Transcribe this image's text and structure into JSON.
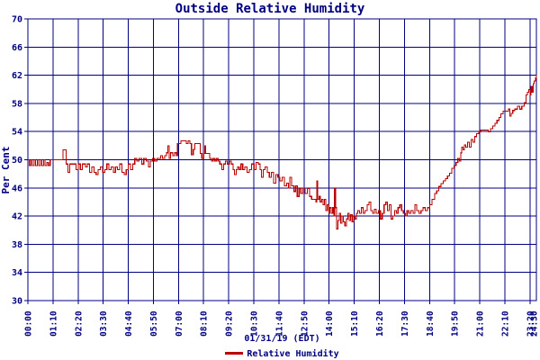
{
  "title": "Outside Relative Humidity",
  "footer": {
    "date_label": "01/31/19 (EDT)"
  },
  "legend": {
    "label": "Relative Humidity",
    "swatch_color": "#bb0000"
  },
  "colors": {
    "grid": "#000080",
    "text": "#000080",
    "series": "#bb0000",
    "background": "#ffffff"
  },
  "chart_data": {
    "type": "line",
    "title": "Outside Relative Humidity",
    "xlabel": "",
    "ylabel": "Per Cent",
    "ylim": [
      30,
      70
    ],
    "y_ticks": [
      70,
      66,
      62,
      58,
      54,
      50,
      46,
      42,
      38,
      34,
      30
    ],
    "x_range_minutes": [
      0,
      1418
    ],
    "x_ticks_minutes": [
      0,
      70,
      140,
      210,
      280,
      350,
      420,
      490,
      560,
      630,
      700,
      770,
      840,
      910,
      980,
      1050,
      1120,
      1190,
      1260,
      1330,
      1400
    ],
    "x_tick_labels": [
      "00:00",
      "01:10",
      "02:20",
      "03:30",
      "04:40",
      "05:50",
      "07:00",
      "08:10",
      "09:20",
      "10:30",
      "11:40",
      "12:50",
      "14:00",
      "15:10",
      "16:20",
      "17:30",
      "18:40",
      "19:50",
      "21:00",
      "22:10",
      "23:20"
    ],
    "x_overlap_label": "24:30",
    "grid": true,
    "legend_position": "bottom-center",
    "series": [
      {
        "name": "Relative Humidity",
        "color": "#bb0000",
        "points": [
          [
            0,
            50
          ],
          [
            4,
            49.2
          ],
          [
            8,
            50
          ],
          [
            12,
            49.2
          ],
          [
            17,
            50
          ],
          [
            21,
            49.2
          ],
          [
            26,
            50
          ],
          [
            30,
            49.2
          ],
          [
            35,
            50
          ],
          [
            39,
            49.2
          ],
          [
            44,
            50
          ],
          [
            48,
            49.2
          ],
          [
            53,
            49.6
          ],
          [
            57,
            49.2
          ],
          [
            62,
            50
          ],
          [
            94,
            50
          ],
          [
            98,
            51.4
          ],
          [
            104,
            51.4
          ],
          [
            107,
            49.4
          ],
          [
            112,
            48.2
          ],
          [
            117,
            49.4
          ],
          [
            130,
            49.4
          ],
          [
            134,
            48.6
          ],
          [
            140,
            49.4
          ],
          [
            146,
            48.6
          ],
          [
            152,
            49.4
          ],
          [
            160,
            49
          ],
          [
            166,
            49.4
          ],
          [
            172,
            48.2
          ],
          [
            178,
            49
          ],
          [
            184,
            48.2
          ],
          [
            190,
            47.9
          ],
          [
            196,
            48.6
          ],
          [
            202,
            49
          ],
          [
            208,
            48.2
          ],
          [
            214,
            48.6
          ],
          [
            220,
            49.4
          ],
          [
            226,
            48.6
          ],
          [
            232,
            49
          ],
          [
            238,
            48.2
          ],
          [
            244,
            49
          ],
          [
            250,
            48.6
          ],
          [
            256,
            49.4
          ],
          [
            262,
            48.2
          ],
          [
            268,
            47.9
          ],
          [
            274,
            48.6
          ],
          [
            280,
            49.4
          ],
          [
            286,
            48.6
          ],
          [
            292,
            49.4
          ],
          [
            298,
            50.2
          ],
          [
            304,
            49.8
          ],
          [
            310,
            50.2
          ],
          [
            317,
            49.4
          ],
          [
            323,
            50.2
          ],
          [
            330,
            49.8
          ],
          [
            336,
            49
          ],
          [
            341,
            49.8
          ],
          [
            347,
            50.2
          ],
          [
            353,
            49.8
          ],
          [
            360,
            50.2
          ],
          [
            370,
            50.6
          ],
          [
            375,
            50.2
          ],
          [
            381,
            50.6
          ],
          [
            386,
            51
          ],
          [
            390,
            52
          ],
          [
            394,
            50.2
          ],
          [
            398,
            51
          ],
          [
            404,
            50.6
          ],
          [
            409,
            51
          ],
          [
            414,
            50.6
          ],
          [
            417,
            52.3
          ],
          [
            422,
            52.3
          ],
          [
            427,
            52.7
          ],
          [
            436,
            52.7
          ],
          [
            442,
            52.3
          ],
          [
            447,
            52.7
          ],
          [
            452,
            52.3
          ],
          [
            456,
            50.7
          ],
          [
            461,
            51.5
          ],
          [
            465,
            52.3
          ],
          [
            475,
            52.3
          ],
          [
            480,
            50.9
          ],
          [
            485,
            50.2
          ],
          [
            490,
            50.9
          ],
          [
            493,
            52
          ],
          [
            496,
            50.9
          ],
          [
            502,
            50.9
          ],
          [
            507,
            50.2
          ],
          [
            512,
            49.8
          ],
          [
            516,
            50.2
          ],
          [
            520,
            49.8
          ],
          [
            525,
            50.2
          ],
          [
            530,
            49.8
          ],
          [
            535,
            49.4
          ],
          [
            541,
            48.6
          ],
          [
            546,
            49.4
          ],
          [
            551,
            49.8
          ],
          [
            556,
            49.4
          ],
          [
            562,
            49.8
          ],
          [
            567,
            49.4
          ],
          [
            572,
            48.6
          ],
          [
            576,
            47.9
          ],
          [
            581,
            48.6
          ],
          [
            585,
            49
          ],
          [
            589,
            48.6
          ],
          [
            594,
            49.4
          ],
          [
            599,
            48.6
          ],
          [
            605,
            49
          ],
          [
            611,
            48.2
          ],
          [
            617,
            48.6
          ],
          [
            624,
            49.4
          ],
          [
            631,
            48.6
          ],
          [
            636,
            49.6
          ],
          [
            642,
            49.4
          ],
          [
            647,
            48.6
          ],
          [
            651,
            47.5
          ],
          [
            656,
            48.6
          ],
          [
            661,
            49
          ],
          [
            667,
            48.2
          ],
          [
            673,
            47.5
          ],
          [
            679,
            48.2
          ],
          [
            685,
            46.7
          ],
          [
            691,
            47.9
          ],
          [
            697,
            47.5
          ],
          [
            702,
            47
          ],
          [
            709,
            47.5
          ],
          [
            715,
            46.3
          ],
          [
            721,
            46.7
          ],
          [
            726,
            46
          ],
          [
            730,
            47.5
          ],
          [
            735,
            46.3
          ],
          [
            741,
            45.5
          ],
          [
            746,
            46.3
          ],
          [
            751,
            44.8
          ],
          [
            756,
            45.9
          ],
          [
            761,
            45.2
          ],
          [
            767,
            46
          ],
          [
            773,
            45.2
          ],
          [
            779,
            45.9
          ],
          [
            785,
            44.8
          ],
          [
            791,
            44.4
          ],
          [
            798,
            44.4
          ],
          [
            803,
            44
          ],
          [
            805,
            47
          ],
          [
            808,
            44.4
          ],
          [
            812,
            44.8
          ],
          [
            815,
            44
          ],
          [
            819,
            44.4
          ],
          [
            823,
            43.6
          ],
          [
            827,
            44.4
          ],
          [
            831,
            42.8
          ],
          [
            835,
            43.6
          ],
          [
            839,
            42.4
          ],
          [
            842,
            43.2
          ],
          [
            846,
            42.4
          ],
          [
            850,
            43.2
          ],
          [
            853,
            42
          ],
          [
            855,
            45.9
          ],
          [
            858,
            43.2
          ],
          [
            861,
            40.2
          ],
          [
            864,
            41.4
          ],
          [
            868,
            42.4
          ],
          [
            872,
            41
          ],
          [
            876,
            42
          ],
          [
            880,
            41.2
          ],
          [
            884,
            40.6
          ],
          [
            888,
            41.6
          ],
          [
            892,
            42.4
          ],
          [
            896,
            41.4
          ],
          [
            900,
            42.2
          ],
          [
            904,
            41.2
          ],
          [
            908,
            42
          ],
          [
            912,
            41.6
          ],
          [
            916,
            42.4
          ],
          [
            920,
            42.8
          ],
          [
            925,
            42.4
          ],
          [
            930,
            43.2
          ],
          [
            935,
            42.4
          ],
          [
            940,
            42.8
          ],
          [
            946,
            43.6
          ],
          [
            951,
            44
          ],
          [
            956,
            42.8
          ],
          [
            961,
            42.4
          ],
          [
            966,
            43
          ],
          [
            971,
            42.4
          ],
          [
            977,
            42.8
          ],
          [
            983,
            41.6
          ],
          [
            988,
            42.4
          ],
          [
            993,
            43.6
          ],
          [
            998,
            44
          ],
          [
            1003,
            42.8
          ],
          [
            1008,
            43.6
          ],
          [
            1013,
            41.6
          ],
          [
            1018,
            42
          ],
          [
            1023,
            42.8
          ],
          [
            1028,
            42.4
          ],
          [
            1032,
            43.2
          ],
          [
            1037,
            43.6
          ],
          [
            1042,
            42.8
          ],
          [
            1047,
            42.4
          ],
          [
            1052,
            42
          ],
          [
            1057,
            42.8
          ],
          [
            1062,
            42.4
          ],
          [
            1068,
            42.8
          ],
          [
            1074,
            42.4
          ],
          [
            1079,
            43.6
          ],
          [
            1084,
            42.8
          ],
          [
            1090,
            42.4
          ],
          [
            1096,
            42.8
          ],
          [
            1102,
            43.2
          ],
          [
            1108,
            42.8
          ],
          [
            1114,
            43.2
          ],
          [
            1120,
            43.6
          ],
          [
            1127,
            44.4
          ],
          [
            1134,
            45.2
          ],
          [
            1140,
            45.6
          ],
          [
            1146,
            46.2
          ],
          [
            1152,
            46.6
          ],
          [
            1158,
            47
          ],
          [
            1164,
            47.3
          ],
          [
            1170,
            47.7
          ],
          [
            1176,
            48.1
          ],
          [
            1182,
            48.8
          ],
          [
            1188,
            49.2
          ],
          [
            1194,
            49.6
          ],
          [
            1199,
            50.2
          ],
          [
            1203,
            49.8
          ],
          [
            1207,
            51
          ],
          [
            1210,
            51.8
          ],
          [
            1213,
            51.4
          ],
          [
            1217,
            52.1
          ],
          [
            1221,
            51.8
          ],
          [
            1226,
            52.5
          ],
          [
            1231,
            51.8
          ],
          [
            1236,
            52.9
          ],
          [
            1241,
            52.5
          ],
          [
            1246,
            53.3
          ],
          [
            1251,
            53.7
          ],
          [
            1257,
            54
          ],
          [
            1263,
            54.2
          ],
          [
            1276,
            54.2
          ],
          [
            1284,
            54
          ],
          [
            1290,
            54.4
          ],
          [
            1296,
            54.8
          ],
          [
            1302,
            55.2
          ],
          [
            1308,
            55.6
          ],
          [
            1314,
            56
          ],
          [
            1319,
            56.5
          ],
          [
            1325,
            56.9
          ],
          [
            1333,
            56.9
          ],
          [
            1340,
            57.2
          ],
          [
            1344,
            56.2
          ],
          [
            1348,
            56.6
          ],
          [
            1352,
            57
          ],
          [
            1358,
            57.2
          ],
          [
            1365,
            57.6
          ],
          [
            1371,
            57.2
          ],
          [
            1377,
            57.6
          ],
          [
            1384,
            58.1
          ],
          [
            1389,
            59.2
          ],
          [
            1393,
            59.6
          ],
          [
            1397,
            60
          ],
          [
            1400,
            59.2
          ],
          [
            1403,
            60.4
          ],
          [
            1406,
            59.6
          ],
          [
            1409,
            60.8
          ],
          [
            1412,
            61.2
          ],
          [
            1415,
            61.6
          ],
          [
            1418,
            62
          ]
        ]
      }
    ]
  }
}
